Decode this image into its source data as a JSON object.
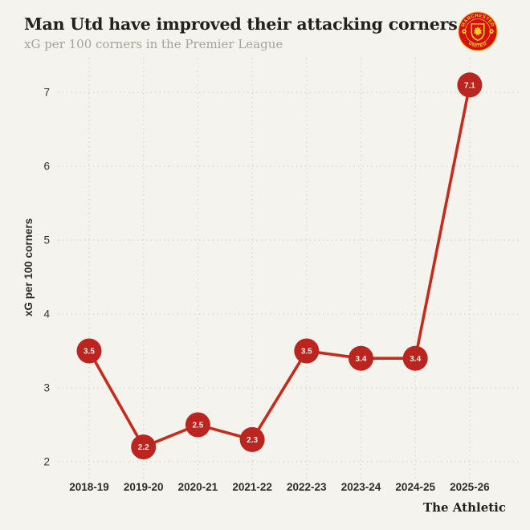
{
  "header": {
    "title": "Man Utd have improved their attacking corners",
    "subtitle": "xG per 100 corners in the Premier League"
  },
  "logo": {
    "name": "manchester-united-crest",
    "top_text": "MANCHESTER",
    "bottom_text": "UNITED"
  },
  "footer": {
    "brand": "The Athletic"
  },
  "colors": {
    "background": "#f4f3ee",
    "grid": "#d8d6cc",
    "line_red": "#c62b1c",
    "marker_red": "#bc241f",
    "title_text": "#23211c",
    "subtitle_text": "#a7a399",
    "axis_text": "#2e2c27",
    "crest_red": "#da1a12",
    "crest_yellow": "#fbd11b"
  },
  "chart_data": {
    "type": "line",
    "title": "Man Utd have improved their attacking corners",
    "subtitle": "xG per 100 corners in the Premier League",
    "categories": [
      "2018-19",
      "2019-20",
      "2020-21",
      "2021-22",
      "2022-23",
      "2023-24",
      "2024-25",
      "2025-26"
    ],
    "values": [
      3.5,
      2.2,
      2.5,
      2.3,
      3.5,
      3.4,
      3.4,
      7.1
    ],
    "point_labels": [
      "3.5",
      "2.2",
      "2.5",
      "2.3",
      "3.5",
      "3.4",
      "3.4",
      "7.1"
    ],
    "xlabel": "",
    "ylabel": "xG per 100 corners",
    "yticks": [
      2,
      3,
      4,
      5,
      6,
      7
    ],
    "ylim": [
      1.8,
      7.4
    ],
    "grid": true,
    "legend": "none",
    "annotation": "data labels shown on every point"
  }
}
